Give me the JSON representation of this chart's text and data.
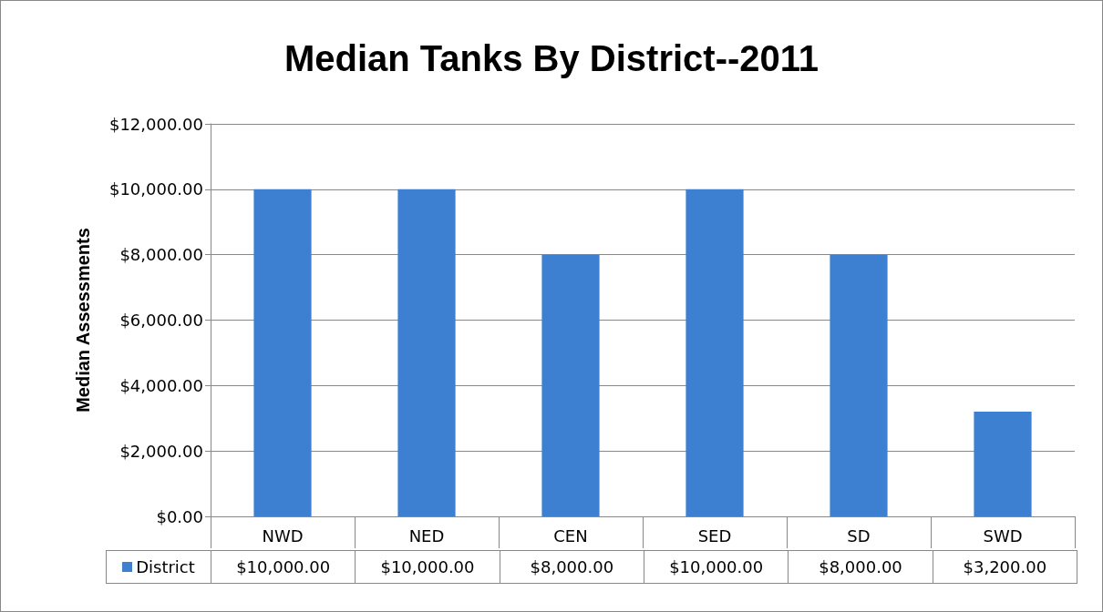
{
  "chart_data": {
    "type": "bar",
    "title": "Median Tanks By District--2011",
    "ylabel": "Median Assessments",
    "categories": [
      "NWD",
      "NED",
      "CEN",
      "SED",
      "SD",
      "SWD"
    ],
    "series": [
      {
        "name": "District",
        "color": "#3d7fd1",
        "values": [
          10000,
          10000,
          8000,
          10000,
          8000,
          3200
        ],
        "value_labels": [
          "$10,000.00",
          "$10,000.00",
          "$8,000.00",
          "$10,000.00",
          "$8,000.00",
          "$3,200.00"
        ]
      }
    ],
    "ylim": [
      0,
      12000
    ],
    "yticks": [
      {
        "value": 0,
        "label": "$0.00"
      },
      {
        "value": 2000,
        "label": "$2,000.00"
      },
      {
        "value": 4000,
        "label": "$4,000.00"
      },
      {
        "value": 6000,
        "label": "$6,000.00"
      },
      {
        "value": 8000,
        "label": "$8,000.00"
      },
      {
        "value": 10000,
        "label": "$10,000.00"
      },
      {
        "value": 12000,
        "label": "$12,000.00"
      }
    ],
    "grid": "y",
    "legend": "bottom left"
  }
}
